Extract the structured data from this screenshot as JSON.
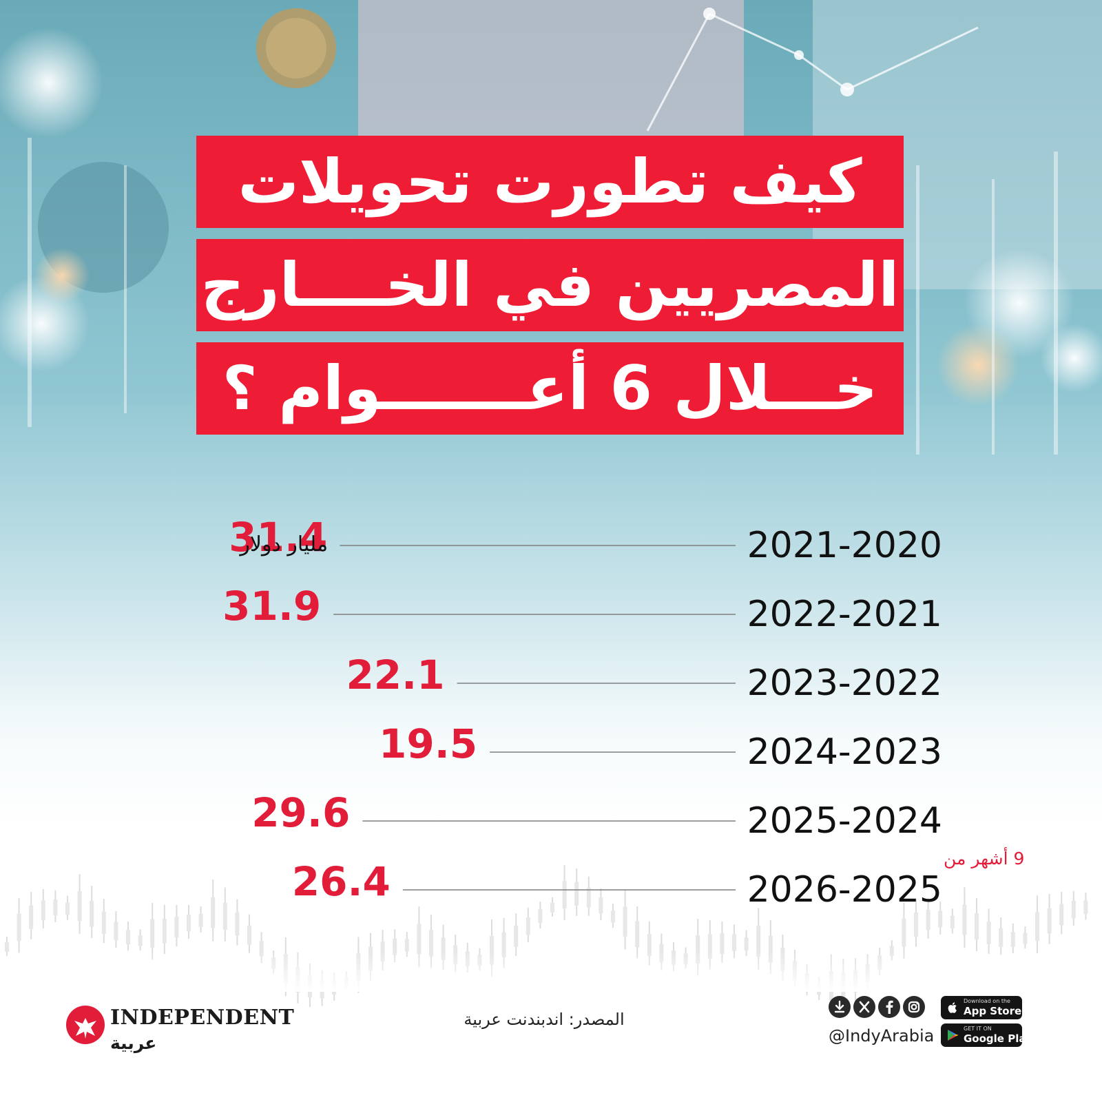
{
  "title": {
    "lines": [
      "كيف تطورت تحويلات",
      "المصريين في الخــــارج",
      "خـــلال 6 أعـــــــوام ؟"
    ]
  },
  "chart_data": {
    "type": "bar",
    "categories": [
      "2021-2020",
      "2022-2021",
      "2023-2022",
      "2024-2023",
      "2025-2024",
      "2026-2025"
    ],
    "values": [
      31.4,
      31.9,
      22.1,
      19.5,
      29.6,
      26.4
    ],
    "value_labels": [
      "31.4",
      "31.9",
      "22.1",
      "19.5",
      "29.6",
      "26.4"
    ],
    "unit": "مليار دولار",
    "note": "9 أشهر من"
  },
  "footer": {
    "source": "المصدر: اندبندنت عربية",
    "handle": "@IndyArabia",
    "logo_word": "INDEPENDENT",
    "logo_arabic": "عربية",
    "app_store": {
      "small": "Download on the",
      "big": "App Store"
    },
    "google_play": {
      "small": "GET IT ON",
      "big": "Google Play"
    },
    "social_icons": [
      "download-icon",
      "x-icon",
      "facebook-icon",
      "instagram-icon"
    ]
  },
  "colors": {
    "accent_red": "#ee1c34",
    "value_red": "#e11d3a",
    "background_teal": "#5fb3c4"
  }
}
